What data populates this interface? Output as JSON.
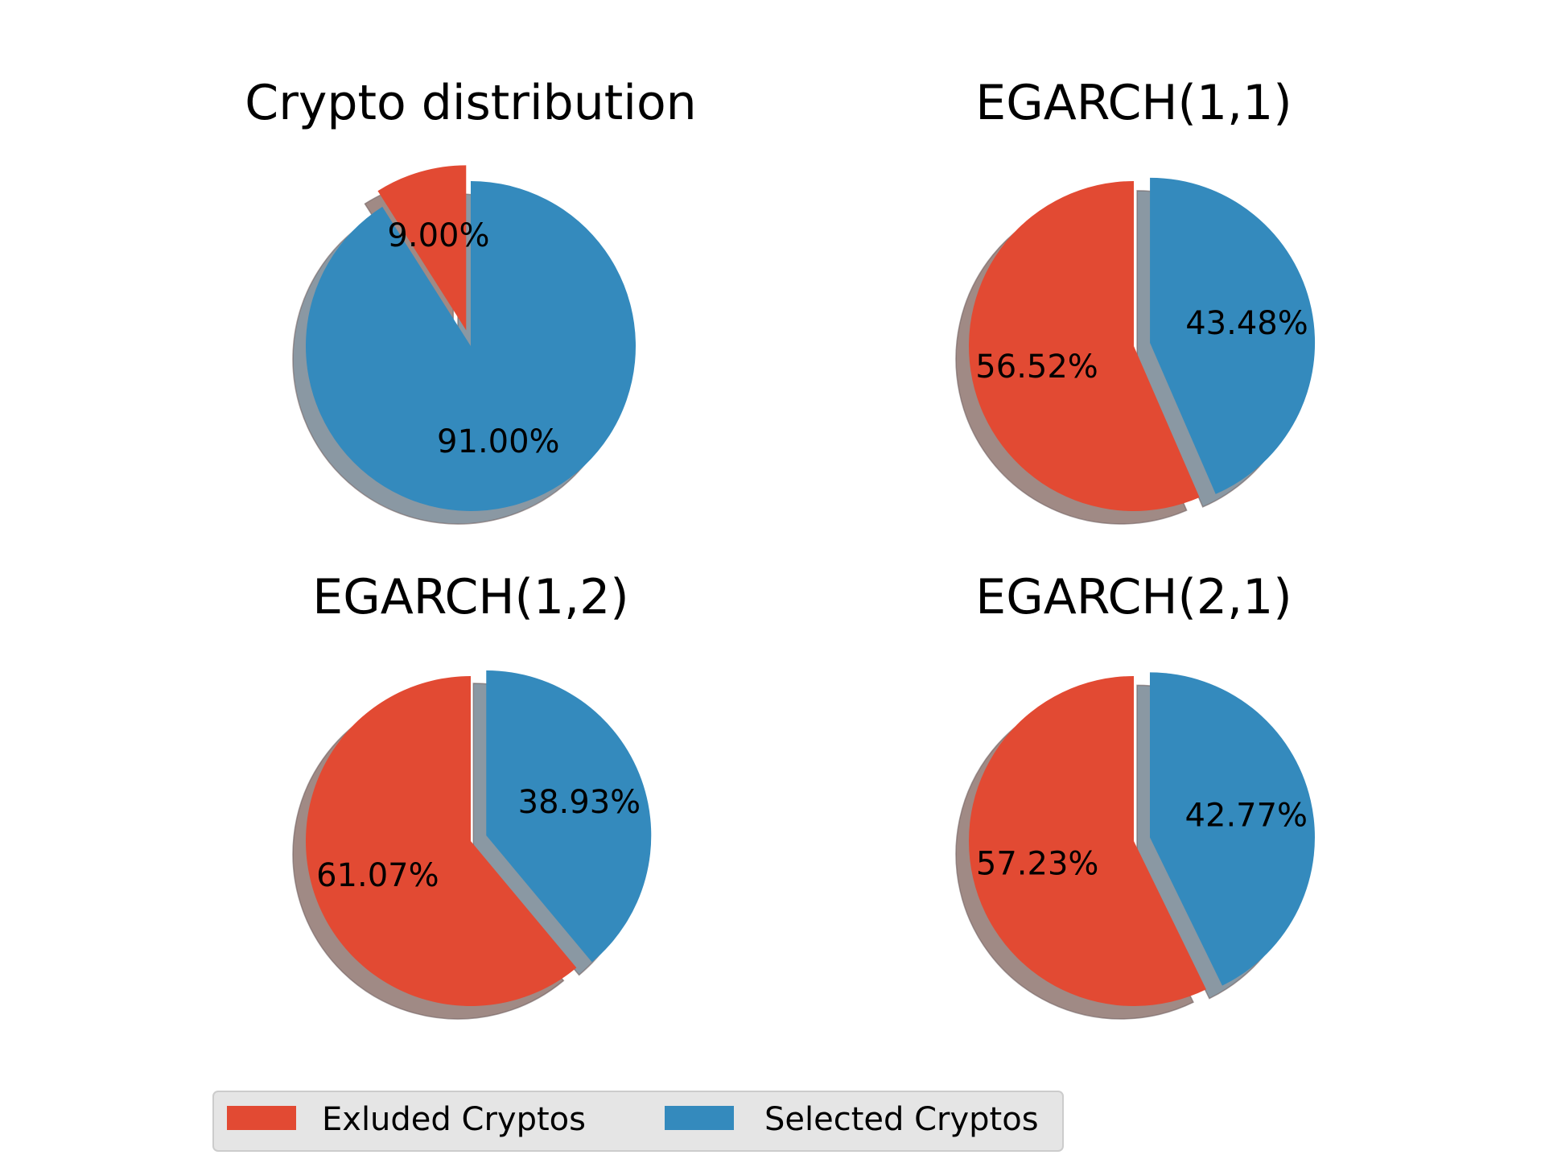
{
  "chart_data": [
    {
      "type": "pie",
      "title": "Crypto distribution",
      "slices": [
        {
          "label": "Exluded Cryptos",
          "value": 9.0,
          "pct_label": "9.00%",
          "exploded": true
        },
        {
          "label": "Selected Cryptos",
          "value": 91.0,
          "pct_label": "91.00%",
          "exploded": false
        }
      ],
      "shadow": true
    },
    {
      "type": "pie",
      "title": "EGARCH(1,1)",
      "slices": [
        {
          "label": "Exluded Cryptos",
          "value": 56.52,
          "pct_label": "56.52%",
          "exploded": false
        },
        {
          "label": "Selected Cryptos",
          "value": 43.48,
          "pct_label": "43.48%",
          "exploded": true
        }
      ],
      "shadow": true
    },
    {
      "type": "pie",
      "title": "EGARCH(1,2)",
      "slices": [
        {
          "label": "Exluded Cryptos",
          "value": 61.07,
          "pct_label": "61.07%",
          "exploded": false
        },
        {
          "label": "Selected Cryptos",
          "value": 38.93,
          "pct_label": "38.93%",
          "exploded": true
        }
      ],
      "shadow": true
    },
    {
      "type": "pie",
      "title": "EGARCH(2,1)",
      "slices": [
        {
          "label": "Exluded Cryptos",
          "value": 57.23,
          "pct_label": "57.23%",
          "exploded": false
        },
        {
          "label": "Selected Cryptos",
          "value": 42.77,
          "pct_label": "42.77%",
          "exploded": true
        }
      ],
      "shadow": true
    }
  ],
  "legend": {
    "placement": "bottom",
    "entries": [
      {
        "label": "Exluded Cryptos",
        "color": "#e24a33"
      },
      {
        "label": "Selected Cryptos",
        "color": "#348abd"
      }
    ]
  },
  "colors": {
    "excluded": "#e24a33",
    "selected": "#348abd",
    "excluded_shadow": "#a08a85",
    "selected_shadow": "#8a98a3",
    "legend_background": "#e5e5e5"
  }
}
